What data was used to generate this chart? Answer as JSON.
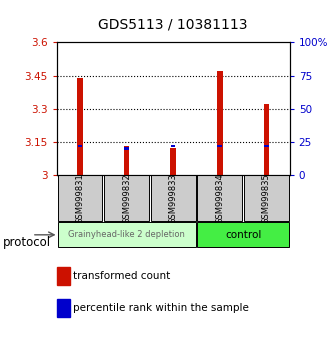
{
  "title": "GDS5113 / 10381113",
  "samples": [
    "GSM999831",
    "GSM999832",
    "GSM999833",
    "GSM999834",
    "GSM999835"
  ],
  "red_values": [
    3.44,
    3.13,
    3.12,
    3.47,
    3.32
  ],
  "blue_values": [
    3.13,
    3.12,
    3.13,
    3.13,
    3.13
  ],
  "bar_bottom": 3.0,
  "ylim_left": [
    3.0,
    3.6
  ],
  "ylim_right": [
    0,
    100
  ],
  "yticks_left": [
    3.0,
    3.15,
    3.3,
    3.45,
    3.6
  ],
  "ytick_labels_left": [
    "3",
    "3.15",
    "3.3",
    "3.45",
    "3.6"
  ],
  "yticks_right": [
    0,
    25,
    50,
    75,
    100
  ],
  "ytick_labels_right": [
    "0",
    "25",
    "50",
    "75",
    "100%"
  ],
  "grid_yticks": [
    3.15,
    3.3,
    3.45
  ],
  "red_color": "#cc1100",
  "blue_color": "#0000cc",
  "group1_samples": [
    0,
    1,
    2
  ],
  "group2_samples": [
    3,
    4
  ],
  "group1_label": "Grainyhead-like 2 depletion",
  "group2_label": "control",
  "group1_bg": "#ccffcc",
  "group2_bg": "#44ee44",
  "sample_bg": "#cccccc",
  "protocol_label": "protocol",
  "legend1_label": "transformed count",
  "legend2_label": "percentile rank within the sample",
  "bar_width": 0.12,
  "blue_bar_height": 0.013,
  "blue_bar_width": 0.1
}
